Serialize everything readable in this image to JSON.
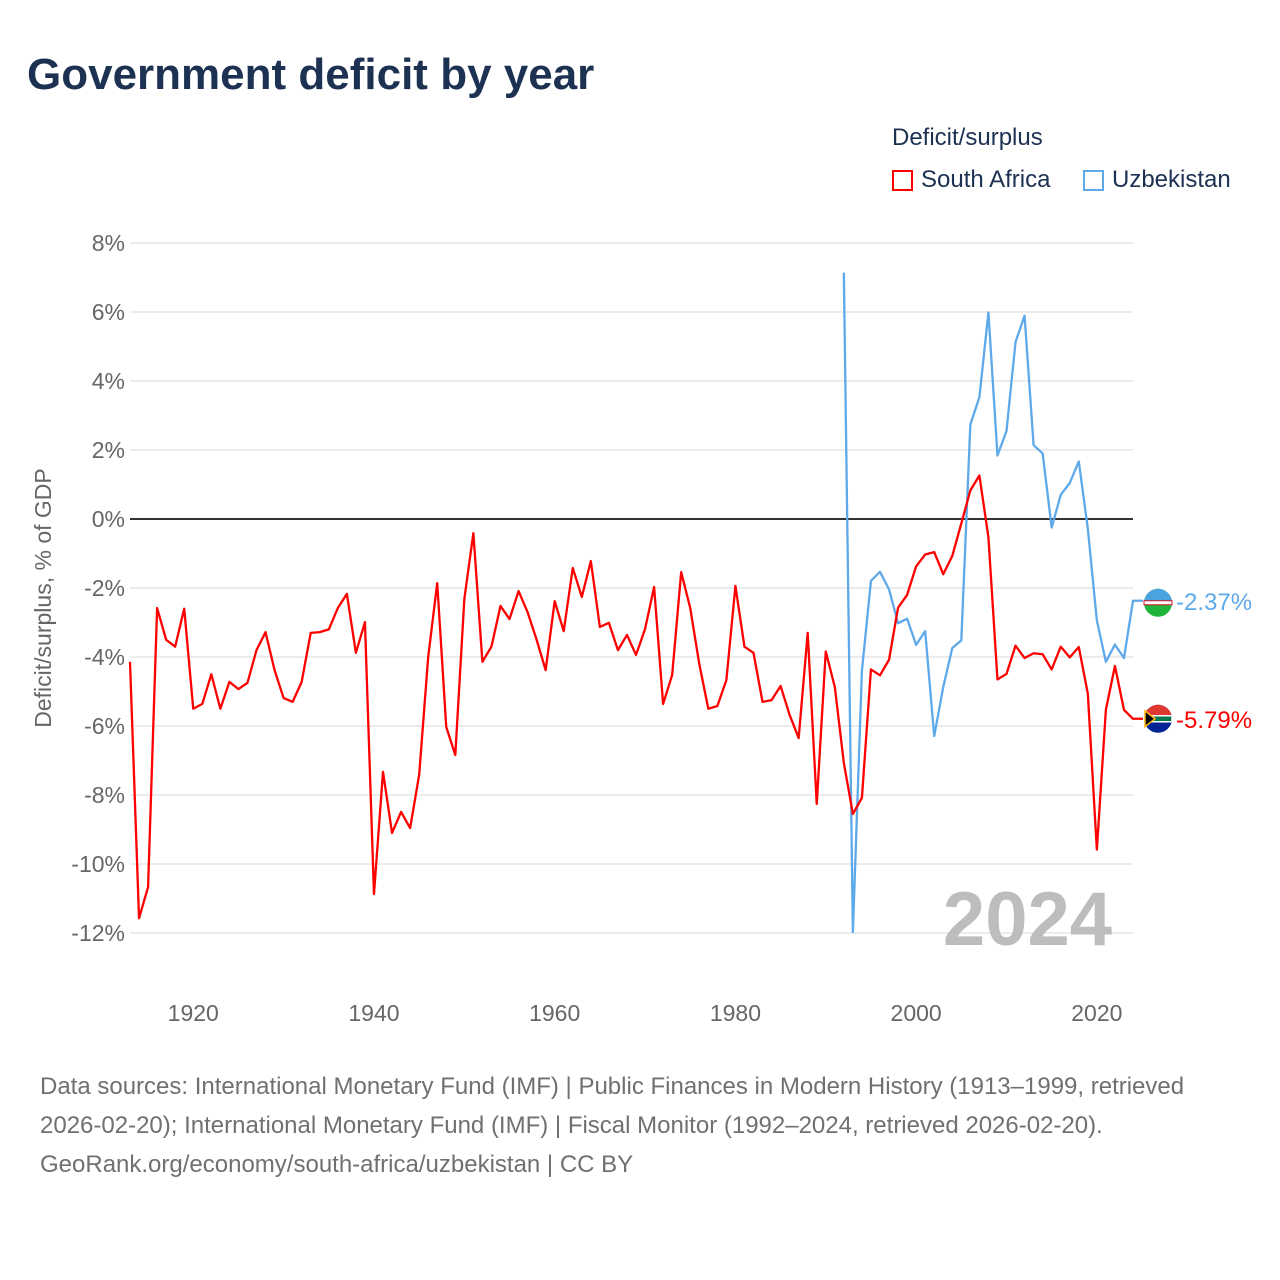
{
  "title": "Government deficit by year",
  "legend": {
    "title": "Deficit/surplus",
    "items": [
      "South Africa",
      "Uzbekistan"
    ]
  },
  "source_lines": [
    "Data sources: International Monetary Fund (IMF) | Public Finances in Modern History (1913–1999, retrieved 2026-02-20); International Monetary Fund (IMF) | Fiscal Monitor (1992–2024, retrieved 2026-02-20).",
    "GeoRank.org/economy/south-africa/uzbekistan | CC BY"
  ],
  "chart_data": {
    "type": "line",
    "title": "Government deficit by year",
    "xlabel": "",
    "ylabel": "Deficit/surplus, % of GDP",
    "xlim": [
      1913,
      2024
    ],
    "ylim": [
      -12,
      8
    ],
    "x_ticks": [
      1920,
      1940,
      1960,
      1980,
      2000,
      2020
    ],
    "y_ticks": [
      8,
      6,
      4,
      2,
      0,
      -2,
      -4,
      -6,
      -8,
      -10,
      -12
    ],
    "y_tick_labels": [
      "8%",
      "6%",
      "4%",
      "2%",
      "0%",
      "-2%",
      "-4%",
      "-6%",
      "-8%",
      "-10%",
      "-12%"
    ],
    "year_watermark": "2024",
    "grid": true,
    "legend_position": "top-right",
    "series": [
      {
        "name": "South Africa",
        "color": "#ff0000",
        "end_label": "-5.79%",
        "flag": "south-africa-flag",
        "start_year": 1913,
        "values": [
          -4.14,
          -11.57,
          -10.67,
          -2.58,
          -3.5,
          -3.7,
          -2.6,
          -5.5,
          -5.36,
          -4.5,
          -5.5,
          -4.72,
          -4.93,
          -4.75,
          -3.8,
          -3.28,
          -4.38,
          -5.19,
          -5.3,
          -4.72,
          -3.3,
          -3.28,
          -3.2,
          -2.58,
          -2.17,
          -3.88,
          -2.99,
          -10.87,
          -7.33,
          -9.1,
          -8.49,
          -8.96,
          -7.42,
          -4.0,
          -1.86,
          -6.03,
          -6.84,
          -2.32,
          -0.41,
          -4.14,
          -3.7,
          -2.52,
          -2.9,
          -2.09,
          -2.7,
          -3.5,
          -4.38,
          -2.38,
          -3.25,
          -1.42,
          -2.26,
          -1.22,
          -3.13,
          -3.01,
          -3.8,
          -3.36,
          -3.94,
          -3.19,
          -1.97,
          -5.36,
          -4.52,
          -1.54,
          -2.58,
          -4.2,
          -5.5,
          -5.42,
          -4.67,
          -1.94,
          -3.7,
          -3.88,
          -5.3,
          -5.25,
          -4.84,
          -5.68,
          -6.35,
          -3.3,
          -8.26,
          -3.84,
          -4.87,
          -7.07,
          -8.55,
          -8.08,
          -4.36,
          -4.53,
          -4.08,
          -2.57,
          -2.2,
          -1.37,
          -1.03,
          -0.96,
          -1.6,
          -1.07,
          -0.13,
          0.83,
          1.26,
          -0.53,
          -4.65,
          -4.49,
          -3.67,
          -4.03,
          -3.89,
          -3.92,
          -4.36,
          -3.7,
          -4.01,
          -3.71,
          -5.06,
          -9.58,
          -5.53,
          -4.26,
          -5.53,
          -5.79
        ]
      },
      {
        "name": "Uzbekistan",
        "color": "#5ea9ea",
        "end_label": "-2.37%",
        "flag": "uzbekistan-flag",
        "start_year": 1992,
        "values": [
          7.14,
          -11.97,
          -4.4,
          -1.79,
          -1.53,
          -2.04,
          -3.02,
          -2.89,
          -3.65,
          -3.25,
          -6.29,
          -4.87,
          -3.74,
          -3.52,
          2.74,
          3.53,
          5.99,
          1.84,
          2.55,
          5.13,
          5.89,
          2.14,
          1.9,
          -0.25,
          0.7,
          1.04,
          1.67,
          -0.28,
          -2.94,
          -4.14,
          -3.64,
          -4.03,
          -2.37
        ]
      }
    ]
  }
}
